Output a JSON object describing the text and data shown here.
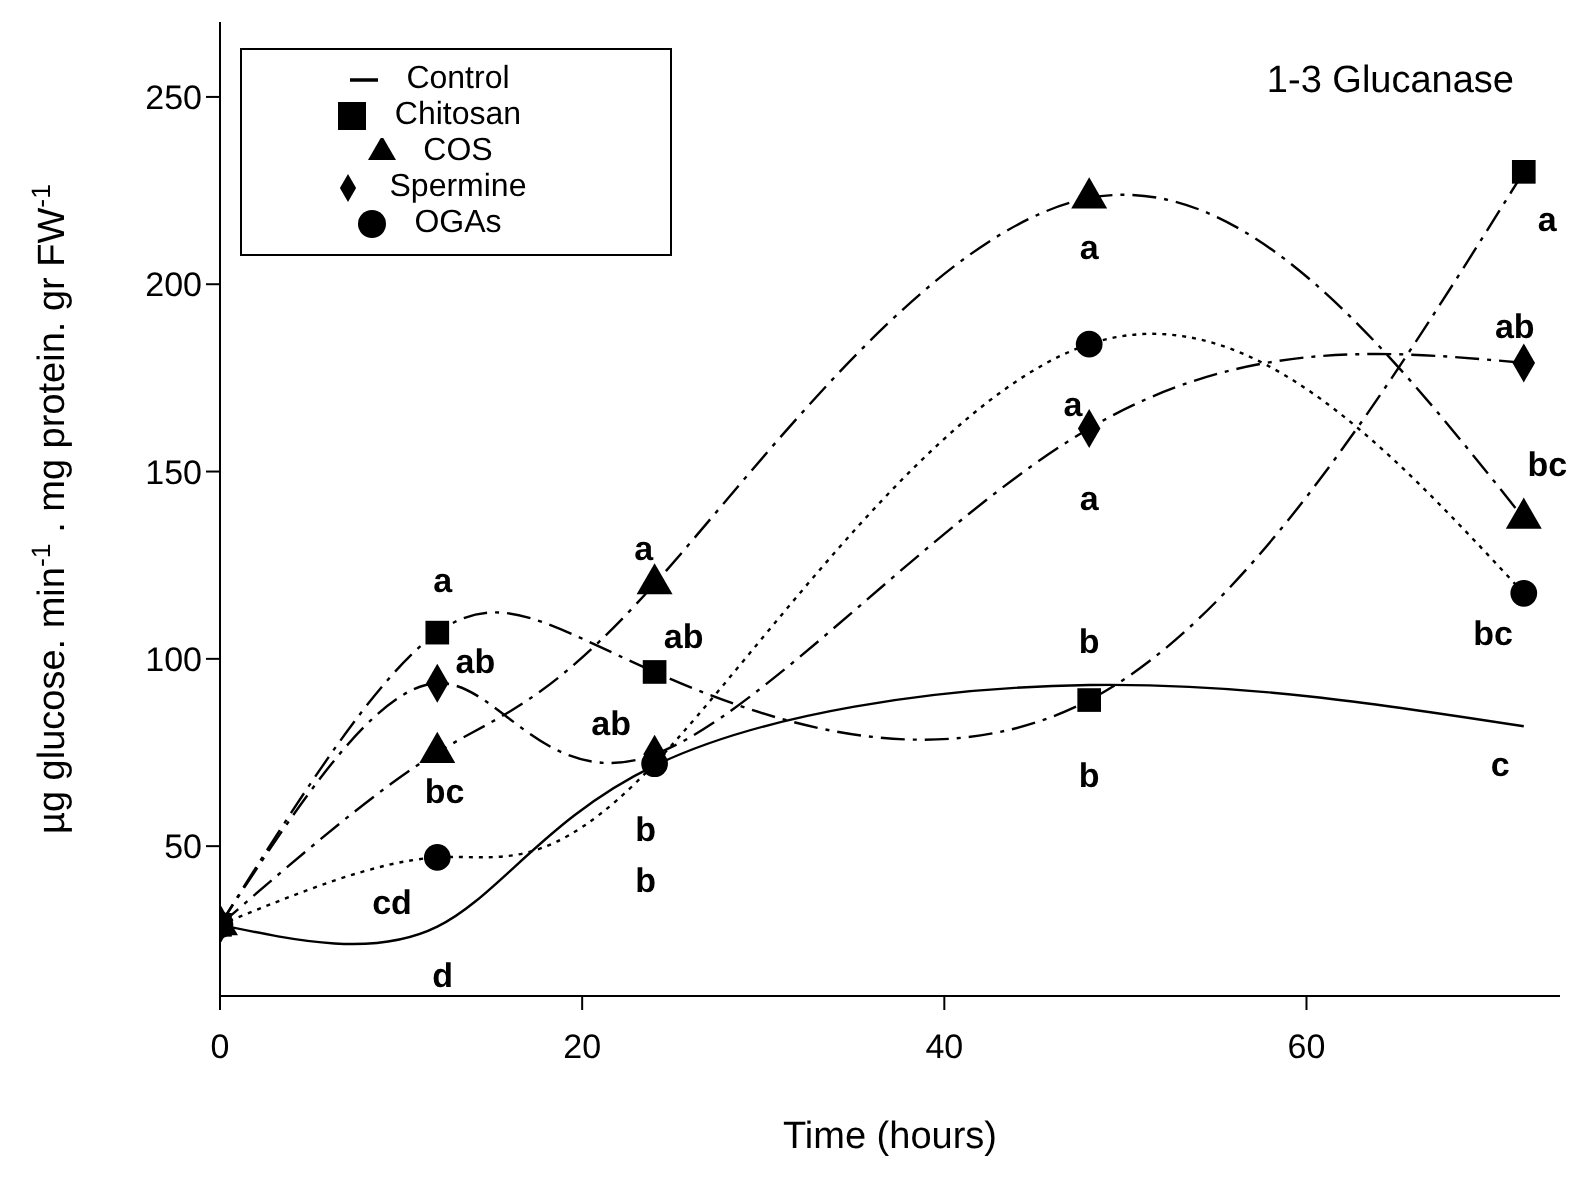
{
  "chart_data": {
    "type": "line",
    "title": "1-3 Glucanase",
    "xlabel": "Time (hours)",
    "ylabel": "µg glucose. min$^{-1}$ . mg protein. gr FW$^{-1}$",
    "x": [
      0,
      12,
      24,
      48,
      72
    ],
    "series": [
      {
        "name": "Control",
        "color": "#000000",
        "values": [
          29,
          28.5,
          71.5,
          93,
          82
        ],
        "marker": "none",
        "line_style": "solid"
      },
      {
        "name": "Chitosan",
        "color": "#000000",
        "values": [
          29,
          107,
          96.5,
          89,
          230
        ],
        "marker": "square",
        "line_style": "dashed"
      },
      {
        "name": "COS",
        "color": "#000000",
        "values": [
          29,
          75,
          120,
          223,
          137.5
        ],
        "marker": "triangle",
        "line_style": "dashed"
      },
      {
        "name": "Spermine",
        "color": "#000000",
        "values": [
          29,
          93.5,
          74.5,
          161.5,
          179
        ],
        "marker": "diamond",
        "line_style": "dashed"
      },
      {
        "name": "OGAs",
        "color": "#000000",
        "values": [
          29,
          47,
          72,
          184,
          117.5
        ],
        "marker": "circle",
        "line_style": "dotted"
      }
    ],
    "xlim": [
      0,
      74
    ],
    "xticks": [
      0,
      20,
      40,
      60
    ],
    "ylim": [
      10,
      270
    ],
    "yticks": [
      50,
      100,
      150,
      200,
      250
    ],
    "grid": false,
    "legend": "top left",
    "annotations": [
      "a",
      "ab",
      "bc",
      "cd",
      "d",
      "a",
      "ab",
      "ab",
      "b",
      "b",
      "a",
      "a",
      "a",
      "b",
      "b",
      "a",
      "ab",
      "bc",
      "bc",
      "c"
    ]
  }
}
